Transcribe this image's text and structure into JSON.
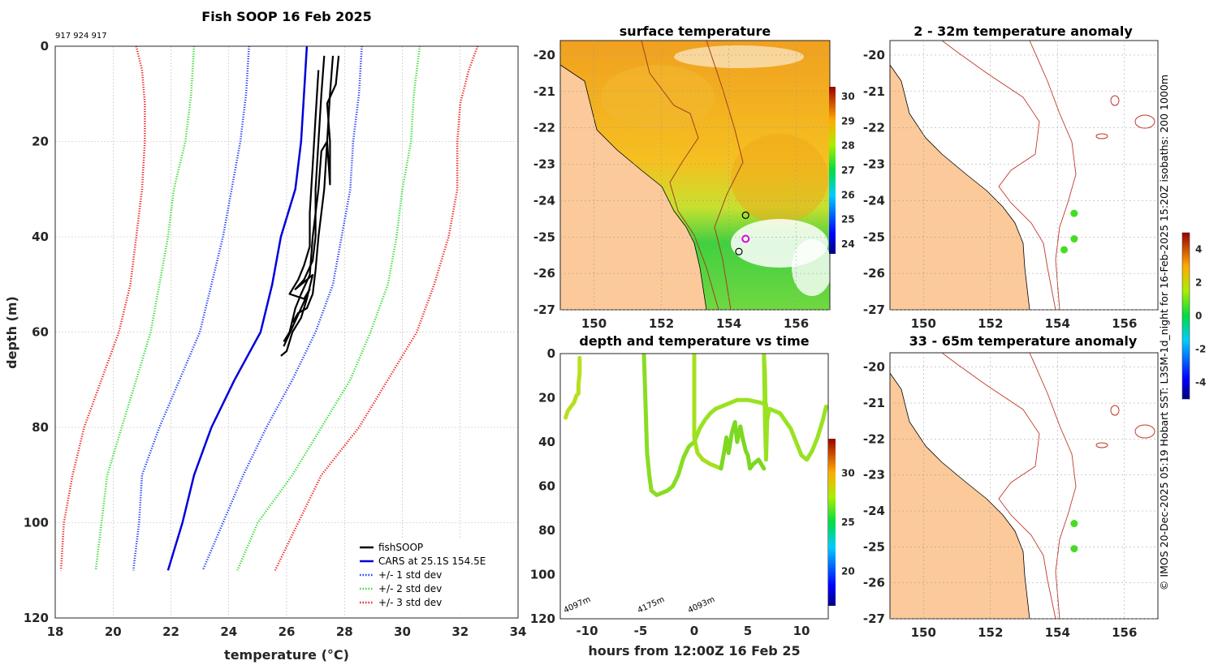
{
  "chart_data": [
    {
      "type": "line",
      "title": "Fish SOOP 16 Feb 2025",
      "note": "917 924 917",
      "xlabel": "temperature (°C)",
      "ylabel": "depth (m)",
      "xlim": [
        18,
        34
      ],
      "ylim": [
        0,
        120
      ],
      "xticks": [
        "18",
        "20",
        "22",
        "24",
        "26",
        "28",
        "30",
        "32",
        "34"
      ],
      "yticks": [
        "0",
        "20",
        "40",
        "60",
        "80",
        "100",
        "120"
      ],
      "legend": [
        "fishSOOP",
        "CARS at 25.1S 154.5E",
        "+/- 1 std dev",
        "+/- 2 std dev",
        "+/- 3 std dev"
      ],
      "series": [
        {
          "name": "CARS at 25.1S 154.5E",
          "color": "#0000dd",
          "points": [
            [
              26.7,
              0
            ],
            [
              26.6,
              10
            ],
            [
              26.5,
              20
            ],
            [
              26.3,
              30
            ],
            [
              25.8,
              40
            ],
            [
              25.5,
              50
            ],
            [
              25.1,
              60
            ],
            [
              24.2,
              70
            ],
            [
              23.4,
              80
            ],
            [
              22.8,
              90
            ],
            [
              22.4,
              100
            ],
            [
              21.9,
              110
            ]
          ]
        },
        {
          "name": "-1 std",
          "color": "#1f3ff5",
          "dotted": true,
          "points": [
            [
              24.7,
              0
            ],
            [
              24.6,
              10
            ],
            [
              24.4,
              20
            ],
            [
              24.1,
              30
            ],
            [
              23.8,
              40
            ],
            [
              23.4,
              50
            ],
            [
              23.0,
              60
            ],
            [
              22.3,
              70
            ],
            [
              21.6,
              80
            ],
            [
              21.0,
              90
            ],
            [
              20.9,
              100
            ],
            [
              20.7,
              110
            ]
          ]
        },
        {
          "name": "+1 std",
          "color": "#1f3ff5",
          "dotted": true,
          "points": [
            [
              28.6,
              0
            ],
            [
              28.5,
              10
            ],
            [
              28.3,
              20
            ],
            [
              28.2,
              30
            ],
            [
              27.9,
              40
            ],
            [
              27.6,
              50
            ],
            [
              27.0,
              60
            ],
            [
              26.2,
              70
            ],
            [
              25.3,
              80
            ],
            [
              24.5,
              90
            ],
            [
              23.8,
              100
            ],
            [
              23.1,
              110
            ]
          ]
        },
        {
          "name": "-2 std",
          "color": "#33dd33",
          "dotted": true,
          "points": [
            [
              22.8,
              0
            ],
            [
              22.7,
              10
            ],
            [
              22.5,
              20
            ],
            [
              22.1,
              30
            ],
            [
              21.9,
              40
            ],
            [
              21.6,
              50
            ],
            [
              21.3,
              60
            ],
            [
              20.8,
              70
            ],
            [
              20.3,
              80
            ],
            [
              19.8,
              90
            ],
            [
              19.6,
              100
            ],
            [
              19.4,
              110
            ]
          ]
        },
        {
          "name": "+2 std",
          "color": "#33dd33",
          "dotted": true,
          "points": [
            [
              30.6,
              0
            ],
            [
              30.4,
              10
            ],
            [
              30.3,
              20
            ],
            [
              30.0,
              30
            ],
            [
              29.8,
              40
            ],
            [
              29.5,
              50
            ],
            [
              28.9,
              60
            ],
            [
              28.2,
              70
            ],
            [
              27.2,
              80
            ],
            [
              26.2,
              90
            ],
            [
              25.0,
              100
            ],
            [
              24.3,
              110
            ]
          ]
        },
        {
          "name": "-3 std",
          "color": "#ee2222",
          "dotted": true,
          "points": [
            [
              20.8,
              0
            ],
            [
              21.0,
              5
            ],
            [
              21.1,
              12
            ],
            [
              21.1,
              20
            ],
            [
              21.0,
              30
            ],
            [
              20.8,
              40
            ],
            [
              20.6,
              50
            ],
            [
              20.2,
              60
            ],
            [
              19.6,
              70
            ],
            [
              19.0,
              80
            ],
            [
              18.6,
              90
            ],
            [
              18.3,
              100
            ],
            [
              18.2,
              110
            ]
          ]
        },
        {
          "name": "+3 std",
          "color": "#ee2222",
          "dotted": true,
          "points": [
            [
              32.6,
              0
            ],
            [
              32.3,
              5
            ],
            [
              32.0,
              12
            ],
            [
              31.9,
              20
            ],
            [
              31.9,
              30
            ],
            [
              31.6,
              40
            ],
            [
              31.1,
              50
            ],
            [
              30.5,
              60
            ],
            [
              29.5,
              70
            ],
            [
              28.5,
              80
            ],
            [
              27.2,
              90
            ],
            [
              26.4,
              100
            ],
            [
              25.6,
              110
            ]
          ]
        },
        {
          "name": "fishSOOP",
          "color": "#000000",
          "points": [
            [
              27.3,
              2
            ],
            [
              27.2,
              10
            ],
            [
              27.1,
              20
            ],
            [
              27.0,
              30
            ],
            [
              27.0,
              40
            ],
            [
              26.9,
              45
            ],
            [
              26.6,
              49
            ],
            [
              26.3,
              51
            ],
            [
              26.9,
              48
            ],
            [
              26.7,
              53
            ],
            [
              26.5,
              57
            ],
            [
              26.2,
              60
            ],
            [
              26.0,
              64
            ],
            [
              25.8,
              65
            ]
          ]
        },
        {
          "name": "fishSOOP",
          "color": "#000000",
          "points": [
            [
              27.6,
              2
            ],
            [
              27.5,
              10
            ],
            [
              27.4,
              20
            ],
            [
              27.3,
              30
            ],
            [
              27.1,
              40
            ],
            [
              27.0,
              47
            ],
            [
              26.9,
              52
            ],
            [
              26.7,
              55
            ],
            [
              26.4,
              56
            ],
            [
              26.2,
              58
            ]
          ]
        },
        {
          "name": "fishSOOP",
          "color": "#000000",
          "points": [
            [
              27.8,
              2
            ],
            [
              27.7,
              8
            ],
            [
              27.4,
              12
            ],
            [
              27.5,
              20
            ],
            [
              27.5,
              29
            ],
            [
              27.4,
              20
            ],
            [
              27.2,
              22
            ],
            [
              27.1,
              30
            ],
            [
              26.9,
              40
            ],
            [
              26.8,
              48
            ],
            [
              26.5,
              52
            ],
            [
              26.3,
              55
            ],
            [
              26.1,
              60
            ],
            [
              25.9,
              62
            ]
          ]
        },
        {
          "name": "fishSOOP",
          "color": "#000000",
          "points": [
            [
              27.1,
              5
            ],
            [
              27.0,
              15
            ],
            [
              26.9,
              25
            ],
            [
              26.8,
              35
            ],
            [
              26.8,
              42
            ],
            [
              26.6,
              46
            ],
            [
              26.4,
              49
            ],
            [
              26.1,
              52
            ],
            [
              26.6,
              53
            ],
            [
              26.8,
              51
            ],
            [
              26.5,
              55
            ],
            [
              25.9,
              63
            ]
          ]
        }
      ]
    },
    {
      "type": "heatmap",
      "title": "surface temperature",
      "xlim": [
        149,
        157
      ],
      "ylim": [
        -27,
        -19.6
      ],
      "xticks": [
        "150",
        "152",
        "154",
        "156"
      ],
      "yticks": [
        "-20",
        "-21",
        "-22",
        "-23",
        "-24",
        "-25",
        "-26",
        "-27"
      ],
      "colorbar": [
        "24",
        "25",
        "26",
        "27",
        "28",
        "29",
        "30"
      ],
      "markers": [
        [
          154.5,
          -24.4
        ],
        [
          154.5,
          -25.05
        ],
        [
          154.3,
          -25.4
        ]
      ]
    },
    {
      "type": "scatter",
      "title": "depth and temperature vs time",
      "xlabel": "hours from 12:00Z 16 Feb 25",
      "xlim": [
        -12.5,
        12.5
      ],
      "ylim": [
        0,
        120
      ],
      "xticks": [
        "-10",
        "-5",
        "0",
        "5",
        "10"
      ],
      "yticks": [
        "0",
        "20",
        "40",
        "60",
        "80",
        "100",
        "120"
      ],
      "colorbar": [
        "20",
        "25",
        "30"
      ],
      "annotations": [
        "4097m",
        "4175m",
        "4093m"
      ],
      "series": [
        {
          "name": "track1",
          "values": [
            [
              -12,
              29
            ],
            [
              -11.8,
              26
            ],
            [
              -11.5,
              24
            ],
            [
              -11.2,
              22
            ],
            [
              -11,
              19
            ],
            [
              -10.8,
              18
            ],
            [
              -10.8,
              14
            ],
            [
              -10.7,
              9
            ],
            [
              -10.7,
              2
            ]
          ]
        },
        {
          "name": "track2",
          "values": [
            [
              -4.7,
              0
            ],
            [
              -4.6,
              15
            ],
            [
              -4.5,
              30
            ],
            [
              -4.4,
              45
            ],
            [
              -4.2,
              55
            ],
            [
              -4,
              62
            ],
            [
              -3.5,
              64
            ],
            [
              -3,
              63
            ],
            [
              -2.5,
              62
            ],
            [
              -2,
              60
            ],
            [
              -1.5,
              55
            ],
            [
              -1,
              47
            ],
            [
              -0.5,
              42
            ],
            [
              0,
              40
            ]
          ]
        },
        {
          "name": "track3",
          "values": [
            [
              0,
              0
            ],
            [
              0,
              20
            ],
            [
              0,
              38
            ],
            [
              0.3,
              45
            ],
            [
              0.8,
              48
            ],
            [
              1.5,
              50
            ],
            [
              2.5,
              52
            ]
          ]
        },
        {
          "name": "track4",
          "values": [
            [
              0,
              40
            ],
            [
              0.5,
              34
            ],
            [
              1,
              30
            ],
            [
              1.5,
              27
            ],
            [
              2,
              25
            ],
            [
              3,
              23
            ],
            [
              4,
              21
            ],
            [
              5,
              21
            ],
            [
              6,
              22
            ],
            [
              6.7,
              23
            ],
            [
              6.7,
              38
            ],
            [
              6.6,
              10
            ],
            [
              6.5,
              0
            ],
            [
              6.6,
              30
            ],
            [
              6.7,
              48
            ],
            [
              6.8,
              30
            ],
            [
              7,
              25
            ],
            [
              8,
              27
            ],
            [
              9,
              34
            ],
            [
              9.5,
              40
            ],
            [
              10,
              46
            ],
            [
              10.5,
              48
            ],
            [
              11,
              44
            ],
            [
              11.5,
              38
            ],
            [
              12,
              30
            ],
            [
              12.3,
              24
            ]
          ]
        },
        {
          "name": "track5",
          "values": [
            [
              2.5,
              52
            ],
            [
              2.8,
              44
            ],
            [
              3,
              38
            ],
            [
              3.2,
              45
            ],
            [
              3.5,
              36
            ],
            [
              3.8,
              31
            ],
            [
              4,
              40
            ],
            [
              4.3,
              33
            ],
            [
              4.5,
              38
            ],
            [
              4.8,
              44
            ],
            [
              5,
              46
            ],
            [
              5.2,
              52
            ],
            [
              5.5,
              50
            ],
            [
              6,
              48
            ],
            [
              6.5,
              52
            ]
          ]
        }
      ]
    },
    {
      "type": "scatter",
      "title": "2 - 32m temperature anomaly",
      "xlim": [
        149,
        157
      ],
      "ylim": [
        -27,
        -19.6
      ],
      "xticks": [
        "150",
        "152",
        "154",
        "156"
      ],
      "yticks": [
        "-20",
        "-21",
        "-22",
        "-23",
        "-24",
        "-25",
        "-26",
        "-27"
      ],
      "points": [
        [
          154.5,
          -24.35
        ],
        [
          154.5,
          -25.05
        ],
        [
          154.2,
          -25.35
        ]
      ]
    },
    {
      "type": "scatter",
      "title": "33 - 65m temperature anomaly",
      "xlim": [
        149,
        157
      ],
      "ylim": [
        -27,
        -19.6
      ],
      "xticks": [
        "150",
        "152",
        "154",
        "156"
      ],
      "yticks": [
        "-20",
        "-21",
        "-22",
        "-23",
        "-24",
        "-25",
        "-26",
        "-27"
      ],
      "points": [
        [
          154.5,
          -24.35
        ],
        [
          154.5,
          -25.05
        ]
      ]
    }
  ],
  "anomaly_colorbar": {
    "ticks": [
      "-4",
      "-2",
      "0",
      "2",
      "4"
    ]
  },
  "side_caption": "© IMOS 20-Dec-2025 05:19 Hobart SST: L3SM-1d_night for 16-Feb-2025 15:20Z isobaths: 200  1000m",
  "colors": {
    "land": "#fbc99a",
    "isobath": "#c0392b",
    "point": "#44dd22"
  }
}
